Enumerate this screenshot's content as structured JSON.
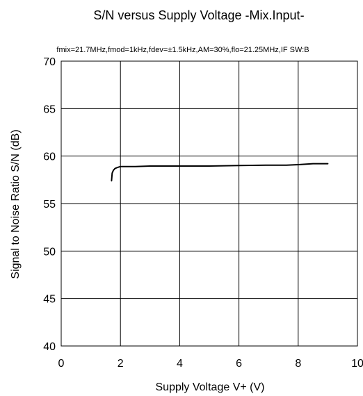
{
  "chart_data": {
    "type": "line",
    "title": "S/N versus Supply Voltage -Mix.Input-",
    "subtitle": "fmix=21.7MHz,fmod=1kHz,fdev=±1.5kHz,AM=30%,flo=21.25MHz,IF SW:B",
    "xlabel": "Supply Voltage V+ (V)",
    "ylabel": "Signal to Noise Ratio S/N (dB)",
    "xlim": [
      0,
      10
    ],
    "ylim": [
      40,
      70
    ],
    "x_ticks": [
      "0",
      "2",
      "4",
      "6",
      "8",
      "10"
    ],
    "y_ticks": [
      "40",
      "45",
      "50",
      "55",
      "60",
      "65",
      "70"
    ],
    "grid": true,
    "series": [
      {
        "x": [
          1.7,
          1.72,
          1.76,
          1.82,
          1.9,
          2.0,
          2.2,
          2.5,
          3.0,
          4.0,
          5.0,
          6.0,
          7.0,
          7.6,
          8.0,
          8.5,
          9.0
        ],
        "y": [
          57.4,
          58.2,
          58.5,
          58.7,
          58.8,
          58.9,
          58.9,
          58.9,
          58.95,
          58.95,
          58.95,
          59.0,
          59.05,
          59.05,
          59.1,
          59.2,
          59.2
        ]
      }
    ]
  }
}
